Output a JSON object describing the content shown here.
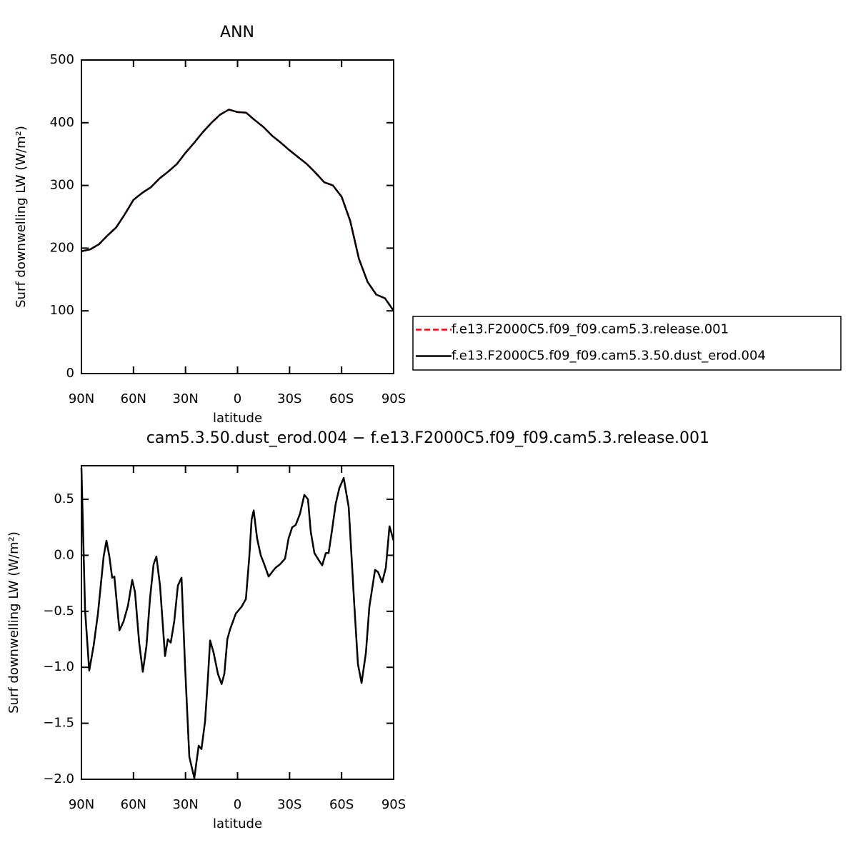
{
  "chart_data": [
    {
      "type": "line",
      "title": "ANN",
      "xlabel": "latitude",
      "ylabel": "Surf downwelling LW (W/m²)",
      "xlim": [
        90,
        -90
      ],
      "xticks": [
        {
          "value": 90,
          "label": "90N"
        },
        {
          "value": 60,
          "label": "60N"
        },
        {
          "value": 30,
          "label": "30N"
        },
        0,
        {
          "value": -30,
          "label": "30S"
        },
        {
          "value": -60,
          "label": "60S"
        },
        {
          "value": -90,
          "label": "90S"
        }
      ],
      "ylim": [
        0,
        500
      ],
      "yticks": [
        0,
        100,
        200,
        300,
        400,
        500
      ],
      "x": [
        90,
        85,
        80,
        75,
        70,
        65,
        60,
        55,
        50,
        45,
        40,
        35,
        30,
        25,
        20,
        15,
        10,
        5,
        0,
        -5,
        -10,
        -15,
        -20,
        -25,
        -30,
        -35,
        -40,
        -45,
        -50,
        -55,
        -60,
        -65,
        -70,
        -75,
        -80,
        -85,
        -90
      ],
      "series": [
        {
          "name": "f.e13.F2000C5.f09_f09.cam5.3.release.001",
          "color": "#ff0000",
          "dashed": true,
          "values": [
            195,
            198,
            206,
            220,
            233,
            254,
            277,
            288,
            297,
            311,
            322,
            334,
            352,
            368,
            385,
            400,
            413,
            421,
            417,
            416,
            404,
            393,
            379,
            368,
            356,
            345,
            334,
            320,
            305,
            300,
            282,
            243,
            183,
            146,
            126,
            120,
            100
          ]
        },
        {
          "name": "f.e13.F2000C5.f09_f09.cam5.3.50.dust_erod.004",
          "color": "#000000",
          "dashed": false,
          "values": [
            195,
            198,
            206,
            220,
            233,
            254,
            277,
            288,
            297,
            311,
            322,
            334,
            352,
            368,
            385,
            400,
            413,
            421,
            417,
            416,
            404,
            393,
            379,
            368,
            356,
            345,
            334,
            320,
            305,
            300,
            282,
            243,
            183,
            146,
            126,
            120,
            100
          ]
        }
      ]
    },
    {
      "type": "line",
      "title": "cam5.3.50.dust_erod.004 − f.e13.F2000C5.f09_f09.cam5.3.release.001",
      "xlabel": "latitude",
      "ylabel": "Surf downwelling LW (W/m²)",
      "xlim": [
        90,
        -90
      ],
      "xticks": [
        {
          "value": 90,
          "label": "90N"
        },
        {
          "value": 60,
          "label": "60N"
        },
        {
          "value": 30,
          "label": "30N"
        },
        0,
        {
          "value": -30,
          "label": "30S"
        },
        {
          "value": -60,
          "label": "60S"
        },
        {
          "value": -90,
          "label": "90S"
        }
      ],
      "ylim": [
        -2.0,
        0.8
      ],
      "yticks": [
        {
          "value": -2.0,
          "label": "−2.0"
        },
        {
          "value": -1.5,
          "label": "−1.5"
        },
        {
          "value": -1.0,
          "label": "−1.0"
        },
        {
          "value": -0.5,
          "label": "−0.5"
        },
        {
          "value": 0.0,
          "label": "0.0"
        },
        0.5
      ],
      "x": [
        90,
        87.9,
        85.5,
        83.0,
        80.5,
        77.2,
        75.6,
        73.9,
        72.3,
        71.0,
        69.8,
        68.1,
        65.7,
        63.2,
        60.7,
        59.1,
        56.7,
        54.6,
        52.5,
        50.5,
        48.4,
        46.8,
        44.7,
        41.8,
        40.2,
        38.5,
        36.5,
        34.4,
        32.3,
        30.3,
        27.8,
        24.9,
        22.4,
        20.8,
        18.7,
        17.1,
        15.8,
        13.8,
        11.3,
        9.2,
        7.6,
        5.9,
        4.3,
        1.0,
        -2.3,
        -4.8,
        -6.8,
        -8.1,
        -9.3,
        -11.3,
        -13.4,
        -15.4,
        -17.9,
        -20.4,
        -22.0,
        -24.5,
        -27.4,
        -29.4,
        -31.5,
        -33.5,
        -36.0,
        -38.5,
        -40.6,
        -42.2,
        -44.3,
        -46.7,
        -48.8,
        -50.9,
        -52.5,
        -54.6,
        -56.6,
        -58.7,
        -61.2,
        -64.1,
        -67.4,
        -69.4,
        -71.5,
        -74.0,
        -76.0,
        -79.3,
        -81.0,
        -83.4,
        -85.5,
        -87.6,
        -90
      ],
      "series": [
        {
          "color": "#000000",
          "dashed": false,
          "values": [
            0.78,
            -0.49,
            -1.03,
            -0.81,
            -0.52,
            -0.01,
            0.13,
            -0.01,
            -0.2,
            -0.19,
            -0.39,
            -0.67,
            -0.59,
            -0.45,
            -0.22,
            -0.33,
            -0.78,
            -1.04,
            -0.81,
            -0.39,
            -0.08,
            -0.01,
            -0.27,
            -0.9,
            -0.75,
            -0.78,
            -0.59,
            -0.27,
            -0.2,
            -0.97,
            -1.8,
            -1.99,
            -1.7,
            -1.73,
            -1.48,
            -1.1,
            -0.76,
            -0.87,
            -1.06,
            -1.15,
            -1.06,
            -0.75,
            -0.66,
            -0.52,
            -0.46,
            -0.39,
            -0.01,
            0.32,
            0.4,
            0.15,
            0,
            -0.08,
            -0.19,
            -0.14,
            -0.11,
            -0.08,
            -0.03,
            0.15,
            0.25,
            0.27,
            0.37,
            0.54,
            0.5,
            0.21,
            0.02,
            -0.04,
            -0.09,
            0.02,
            0.02,
            0.24,
            0.46,
            0.6,
            0.69,
            0.43,
            -0.46,
            -0.97,
            -1.14,
            -0.87,
            -0.46,
            -0.13,
            -0.15,
            -0.24,
            -0.11,
            0.26,
            0.13
          ]
        }
      ]
    }
  ]
}
